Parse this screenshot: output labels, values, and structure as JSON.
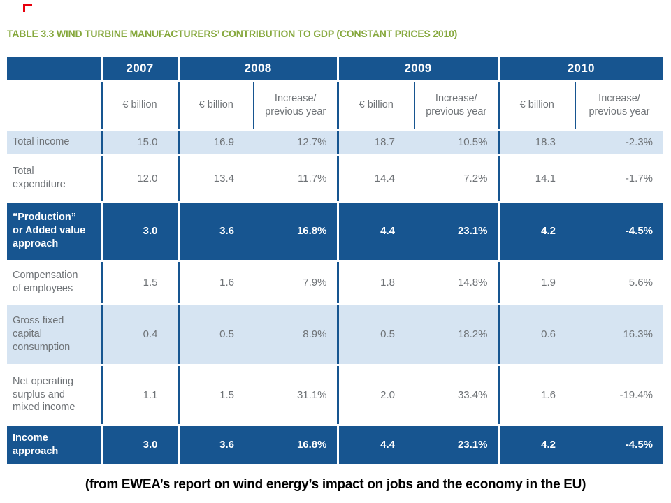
{
  "page": {
    "title": "TABLE 3.3 WIND TURBINE MANUFACTURERS’ CONTRIBUTION TO GDP (CONSTANT PRICES 2010)",
    "caption": "(from EWEA’s report on wind energy’s impact on jobs and the economy in the EU)"
  },
  "colors": {
    "header_blue": "#175590",
    "row_light_blue": "#d6e4f2",
    "title_green": "#86a83d",
    "text_gray": "#6f7377",
    "separator_white": "#ffffff",
    "red_mark": "#e8000d"
  },
  "table": {
    "corner": "",
    "year_headers": [
      "2007",
      "2008",
      "2009",
      "2010"
    ],
    "subheader_cells": [
      "€ billion",
      "€ billion",
      "Increase/\nprevious year",
      "€ billion",
      "Increase/\nprevious year",
      "€ billion",
      "Increase/\nprevious year"
    ],
    "rows": [
      {
        "label": "Total income",
        "style": "light",
        "values": [
          "15.0",
          "16.9",
          "12.7%",
          "18.7",
          "10.5%",
          "18.3",
          "-2.3%"
        ]
      },
      {
        "label": "Total expenditure",
        "style": "white",
        "values": [
          "12.0",
          "13.4",
          "11.7%",
          "14.4",
          "7.2%",
          "14.1",
          "-1.7%"
        ]
      },
      {
        "label": "“Production” or Added value approach",
        "style": "dark",
        "values": [
          "3.0",
          "3.6",
          "16.8%",
          "4.4",
          "23.1%",
          "4.2",
          "-4.5%"
        ]
      },
      {
        "label": "Compensation of employees",
        "style": "white",
        "values": [
          "1.5",
          "1.6",
          "7.9%",
          "1.8",
          "14.8%",
          "1.9",
          "5.6%"
        ]
      },
      {
        "label": "Gross fixed capital consumption",
        "style": "light",
        "values": [
          "0.4",
          "0.5",
          "8.9%",
          "0.5",
          "18.2%",
          "0.6",
          "16.3%"
        ]
      },
      {
        "label": "Net operating surplus and mixed income",
        "style": "white",
        "values": [
          "1.1",
          "1.5",
          "31.1%",
          "2.0",
          "33.4%",
          "1.6",
          "-19.4%"
        ]
      },
      {
        "label": "Income approach",
        "style": "dark",
        "values": [
          "3.0",
          "3.6",
          "16.8%",
          "4.4",
          "23.1%",
          "4.2",
          "-4.5%"
        ]
      }
    ]
  }
}
